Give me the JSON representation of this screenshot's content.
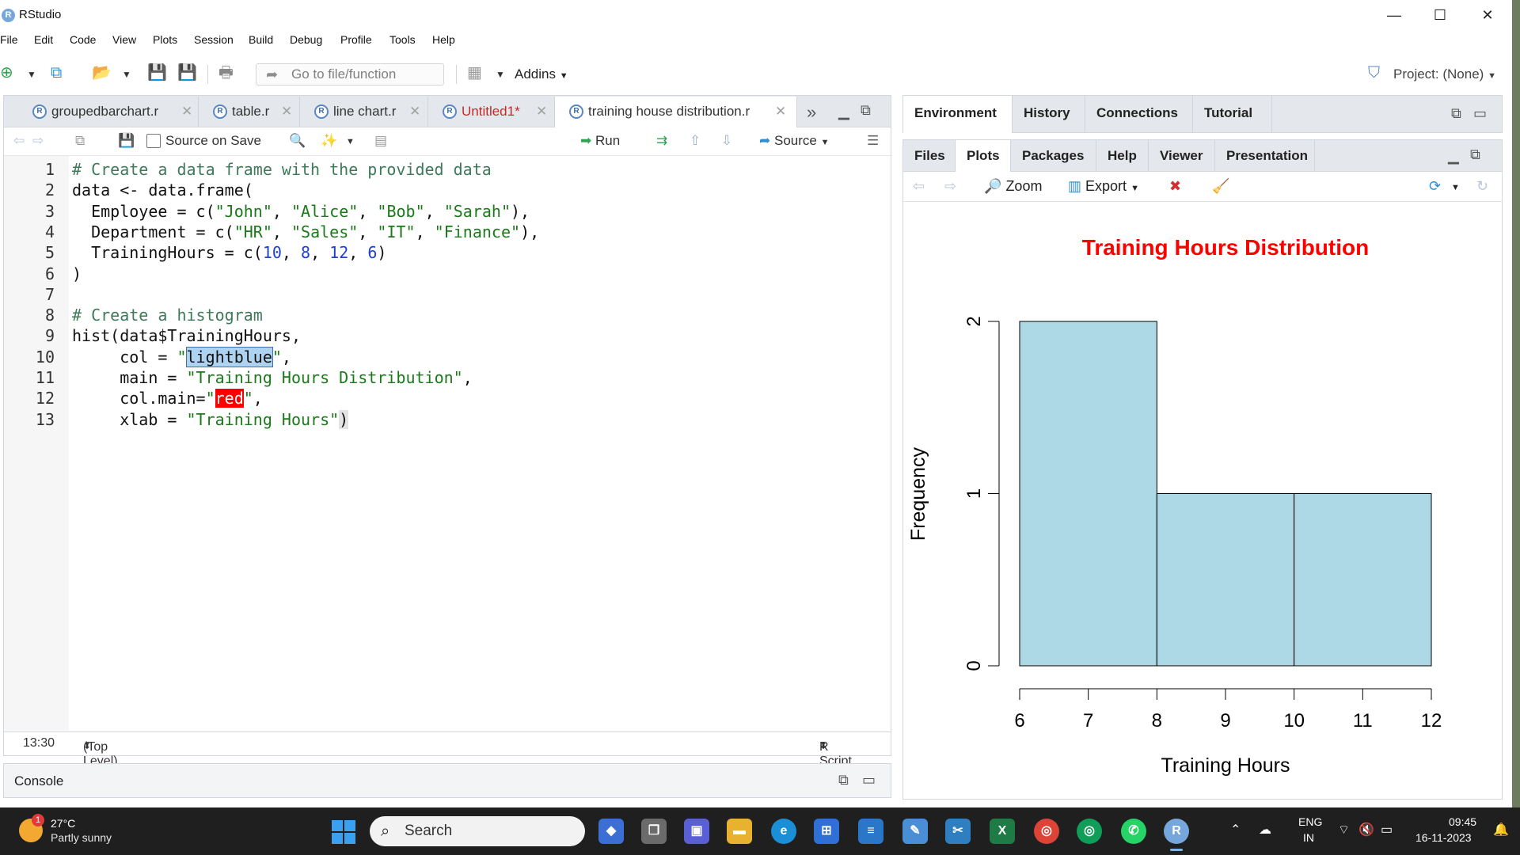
{
  "window": {
    "title": "RStudio",
    "minimize": "—",
    "maximize": "☐",
    "close": "✕"
  },
  "menu": [
    "File",
    "Edit",
    "Code",
    "View",
    "Plots",
    "Session",
    "Build",
    "Debug",
    "Profile",
    "Tools",
    "Help"
  ],
  "toolbar": {
    "goto_placeholder": "Go to file/function",
    "addins": "Addins",
    "project": "Project: (None)"
  },
  "editor": {
    "tabs": [
      {
        "label": "groupedbarchart.r",
        "modified": false,
        "active": false
      },
      {
        "label": "table.r",
        "modified": false,
        "active": false
      },
      {
        "label": "line chart.r",
        "modified": false,
        "active": false
      },
      {
        "label": "Untitled1*",
        "modified": true,
        "active": false
      },
      {
        "label": "training house distribution.r",
        "modified": false,
        "active": true
      }
    ],
    "toolbar": {
      "source_on_save": "Source on Save",
      "run": "Run",
      "source": "Source"
    },
    "lines": [
      "# Create a data frame with the provided data",
      "data <- data.frame(",
      "  Employee = c(\"John\", \"Alice\", \"Bob\", \"Sarah\"),",
      "  Department = c(\"HR\", \"Sales\", \"IT\", \"Finance\"),",
      "  TrainingHours = c(10, 8, 12, 6)",
      ")",
      "",
      "# Create a histogram",
      "hist(data$TrainingHours,",
      "     col = \"lightblue\",",
      "     main = \"Training Hours Distribution\",",
      "     col.main=\"red\",",
      "     xlab = \"Training Hours\")"
    ],
    "status": {
      "position": "13:30",
      "scope": "(Top Level)",
      "type": "R Script"
    }
  },
  "console": {
    "label": "Console"
  },
  "env_tabs": [
    "Environment",
    "History",
    "Connections",
    "Tutorial"
  ],
  "plot_tabs": [
    "Files",
    "Plots",
    "Packages",
    "Help",
    "Viewer",
    "Presentation"
  ],
  "plots_toolbar": {
    "zoom": "Zoom",
    "export": "Export"
  },
  "chart_data": {
    "type": "bar",
    "title": "Training Hours Distribution",
    "xlabel": "Training Hours",
    "ylabel": "Frequency",
    "bins": [
      {
        "from": 6,
        "to": 8,
        "count": 2
      },
      {
        "from": 8,
        "to": 10,
        "count": 1
      },
      {
        "from": 10,
        "to": 12,
        "count": 1
      }
    ],
    "x_ticks": [
      6,
      7,
      8,
      9,
      10,
      11,
      12
    ],
    "y_ticks": [
      0,
      1,
      2
    ],
    "xlim": [
      6,
      12
    ],
    "ylim": [
      0,
      2
    ],
    "bar_color": "#add8e6",
    "title_color": "#ff0000"
  },
  "taskbar": {
    "weather_temp": "27°C",
    "weather_desc": "Partly sunny",
    "weather_badge": "1",
    "search": "Search",
    "lang1": "ENG",
    "lang2": "IN",
    "time": "09:45",
    "date": "16-11-2023"
  }
}
